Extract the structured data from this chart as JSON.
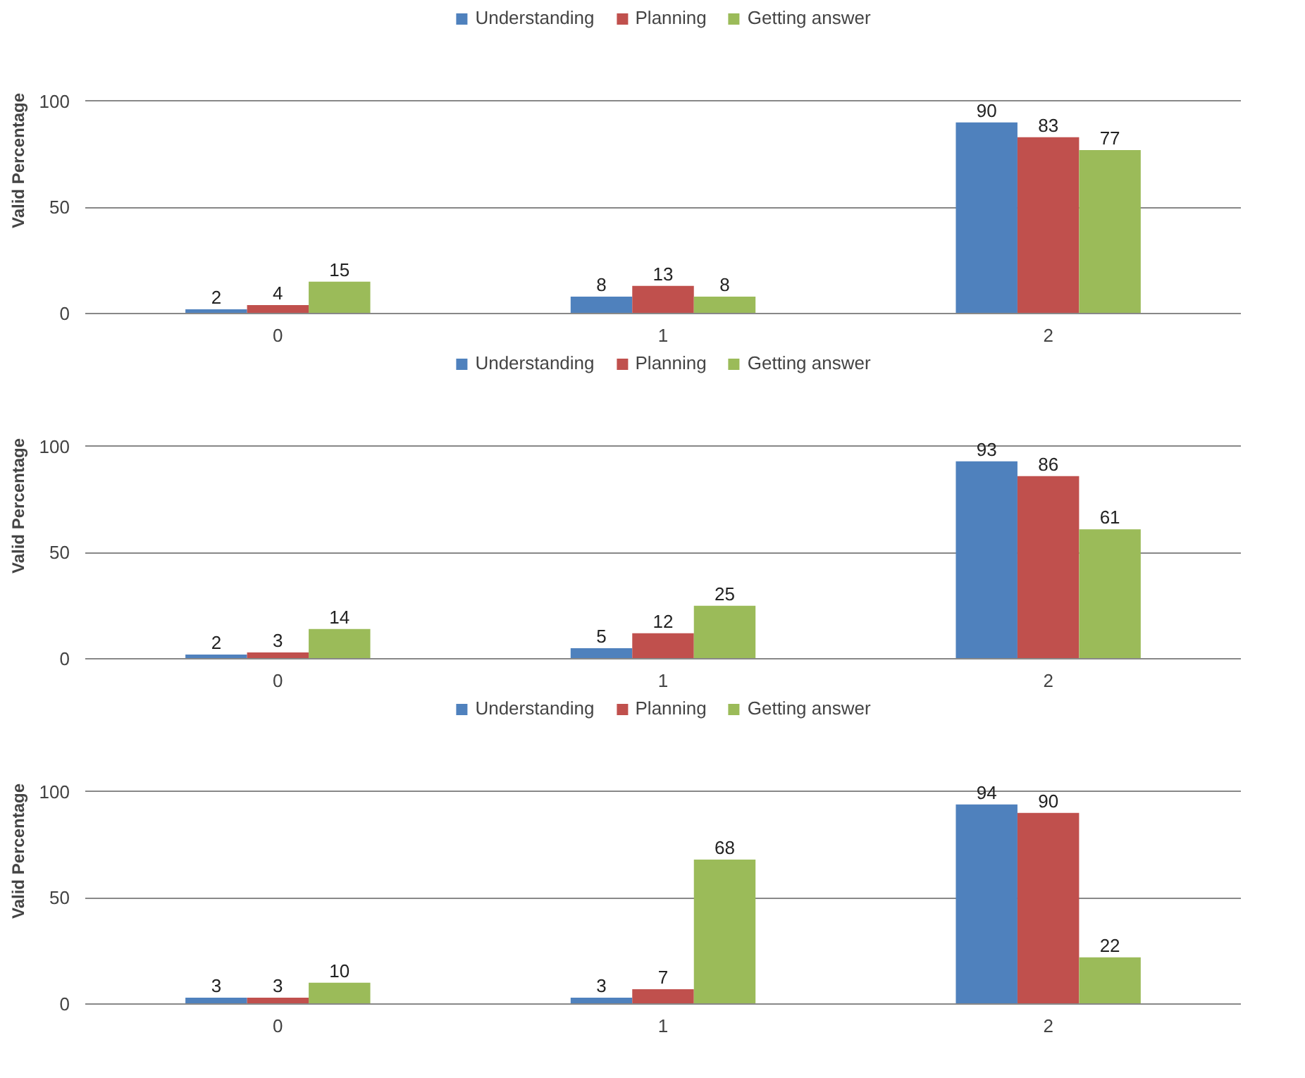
{
  "chart_data": [
    {
      "type": "bar",
      "ylabel": "Valid Percentage",
      "categories": [
        "0",
        "1",
        "2"
      ],
      "ylim": [
        0,
        100
      ],
      "yticks": [
        0,
        50,
        100
      ],
      "grid": "y",
      "legend": "top",
      "data_labels": true,
      "series": [
        {
          "name": "Understanding",
          "color": "#4f81bd",
          "values": [
            2,
            8,
            90
          ]
        },
        {
          "name": "Planning",
          "color": "#c0504d",
          "values": [
            4,
            13,
            83
          ]
        },
        {
          "name": "Getting answer",
          "color": "#9bbb59",
          "values": [
            15,
            8,
            77
          ]
        }
      ]
    },
    {
      "type": "bar",
      "ylabel": "Valid Percentage",
      "categories": [
        "0",
        "1",
        "2"
      ],
      "ylim": [
        0,
        100
      ],
      "yticks": [
        0,
        50,
        100
      ],
      "grid": "y",
      "legend": "top",
      "data_labels": true,
      "series": [
        {
          "name": "Understanding",
          "color": "#4f81bd",
          "values": [
            2,
            5,
            93
          ]
        },
        {
          "name": "Planning",
          "color": "#c0504d",
          "values": [
            3,
            12,
            86
          ]
        },
        {
          "name": "Getting answer",
          "color": "#9bbb59",
          "values": [
            14,
            25,
            61
          ]
        }
      ]
    },
    {
      "type": "bar",
      "ylabel": "Valid Percentage",
      "categories": [
        "0",
        "1",
        "2"
      ],
      "ylim": [
        0,
        100
      ],
      "yticks": [
        0,
        50,
        100
      ],
      "grid": "y",
      "legend": "top",
      "data_labels": true,
      "series": [
        {
          "name": "Understanding",
          "color": "#4f81bd",
          "values": [
            3,
            3,
            94
          ]
        },
        {
          "name": "Planning",
          "color": "#c0504d",
          "values": [
            3,
            7,
            90
          ]
        },
        {
          "name": "Getting answer",
          "color": "#9bbb59",
          "values": [
            10,
            68,
            22
          ]
        }
      ]
    }
  ]
}
